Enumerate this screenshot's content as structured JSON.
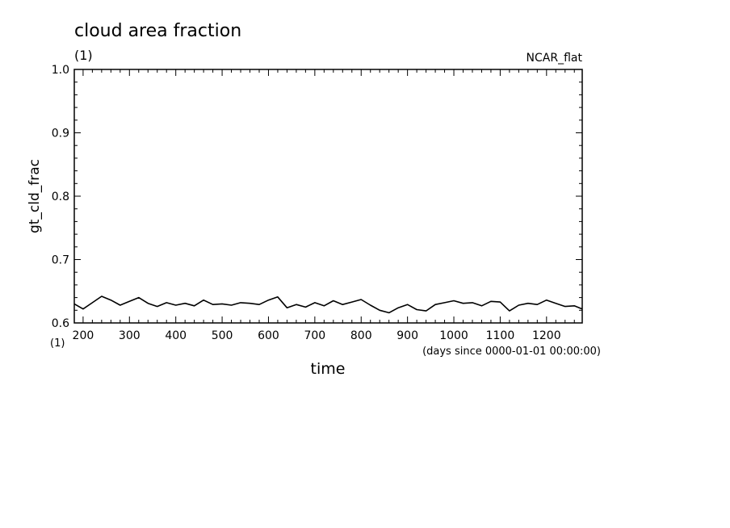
{
  "chart_data": {
    "type": "line",
    "title": "cloud area fraction",
    "title_unit": "(1)",
    "subtitle_right": "NCAR_flat",
    "xlabel": "time",
    "xunit_note": "(days since 0000-01-01 00:00:00)",
    "xunit_left": "(1)",
    "ylabel": "gt_cld_frac",
    "xlim": [
      181,
      1277
    ],
    "ylim": [
      0.6,
      1.0
    ],
    "xticks": [
      200,
      300,
      400,
      500,
      600,
      700,
      800,
      900,
      1000,
      1100,
      1200
    ],
    "yticks": [
      0.6,
      0.7,
      0.8,
      0.9,
      1.0
    ],
    "ytick_labels": [
      "0.6",
      "0.7",
      "0.8",
      "0.9",
      "1.0"
    ],
    "grid": false,
    "line_color": "#000000",
    "series": [
      {
        "x": [
          181,
          200,
          220,
          240,
          260,
          280,
          300,
          320,
          340,
          360,
          380,
          400,
          420,
          440,
          460,
          480,
          500,
          520,
          540,
          560,
          580,
          600,
          620,
          640,
          660,
          680,
          700,
          720,
          740,
          760,
          780,
          800,
          820,
          840,
          860,
          880,
          900,
          920,
          940,
          960,
          980,
          1000,
          1020,
          1040,
          1060,
          1080,
          1100,
          1120,
          1140,
          1160,
          1180,
          1200,
          1220,
          1240,
          1260,
          1277
        ],
        "y": [
          0.63,
          0.622,
          0.632,
          0.642,
          0.636,
          0.628,
          0.634,
          0.64,
          0.631,
          0.626,
          0.632,
          0.628,
          0.631,
          0.627,
          0.636,
          0.629,
          0.63,
          0.628,
          0.632,
          0.631,
          0.629,
          0.636,
          0.641,
          0.624,
          0.629,
          0.625,
          0.632,
          0.627,
          0.635,
          0.629,
          0.633,
          0.637,
          0.628,
          0.62,
          0.616,
          0.624,
          0.629,
          0.621,
          0.619,
          0.629,
          0.632,
          0.635,
          0.631,
          0.632,
          0.627,
          0.634,
          0.633,
          0.619,
          0.628,
          0.631,
          0.629,
          0.636,
          0.631,
          0.626,
          0.627,
          0.622
        ]
      }
    ]
  }
}
